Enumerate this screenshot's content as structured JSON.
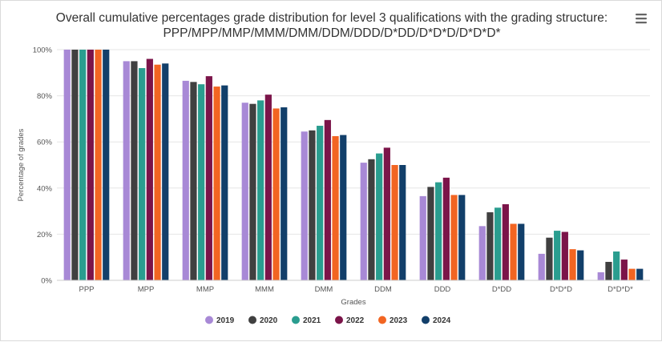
{
  "chart_data": {
    "type": "bar",
    "title_lines": [
      "Overall cumulative percentages grade distribution for level 3 qualifications with the grading structure:",
      "PPP/MPP/MMP/MMM/DMM/DDM/DDD/D*DD/D*D*D/D*D*D*"
    ],
    "xlabel": "Grades",
    "ylabel": "Percentage of grades",
    "ylim": [
      0,
      100
    ],
    "yticks": [
      0,
      20,
      40,
      60,
      80,
      100
    ],
    "ytick_suffix": "%",
    "grid": true,
    "legend_position": "bottom-center",
    "categories": [
      "PPP",
      "MPP",
      "MMP",
      "MMM",
      "DMM",
      "DDM",
      "DDD",
      "D*DD",
      "D*D*D",
      "D*D*D*"
    ],
    "series": [
      {
        "name": "2019",
        "color": "#a889d6",
        "values": [
          100,
          95,
          86.5,
          77,
          64.5,
          51,
          36.5,
          23.5,
          11.5,
          3.5
        ]
      },
      {
        "name": "2020",
        "color": "#404040",
        "values": [
          100,
          95,
          86,
          76.5,
          65,
          52.5,
          40.5,
          29.5,
          18.5,
          8
        ]
      },
      {
        "name": "2021",
        "color": "#2a9d8f",
        "values": [
          100,
          92,
          85,
          78,
          67,
          55,
          42.5,
          31.5,
          21.5,
          12.5
        ]
      },
      {
        "name": "2022",
        "color": "#7b1449",
        "values": [
          100,
          96,
          88.5,
          80.5,
          69.5,
          57.5,
          44.5,
          33,
          21,
          9
        ]
      },
      {
        "name": "2023",
        "color": "#f26522",
        "values": [
          100,
          93.5,
          84,
          74.5,
          62.5,
          50,
          37,
          24.5,
          13.5,
          5
        ]
      },
      {
        "name": "2024",
        "color": "#123f6a",
        "values": [
          100,
          94,
          84.5,
          75,
          63,
          50,
          37,
          24.5,
          13,
          5
        ]
      }
    ]
  },
  "menu": {
    "icon": "hamburger-menu-icon"
  }
}
